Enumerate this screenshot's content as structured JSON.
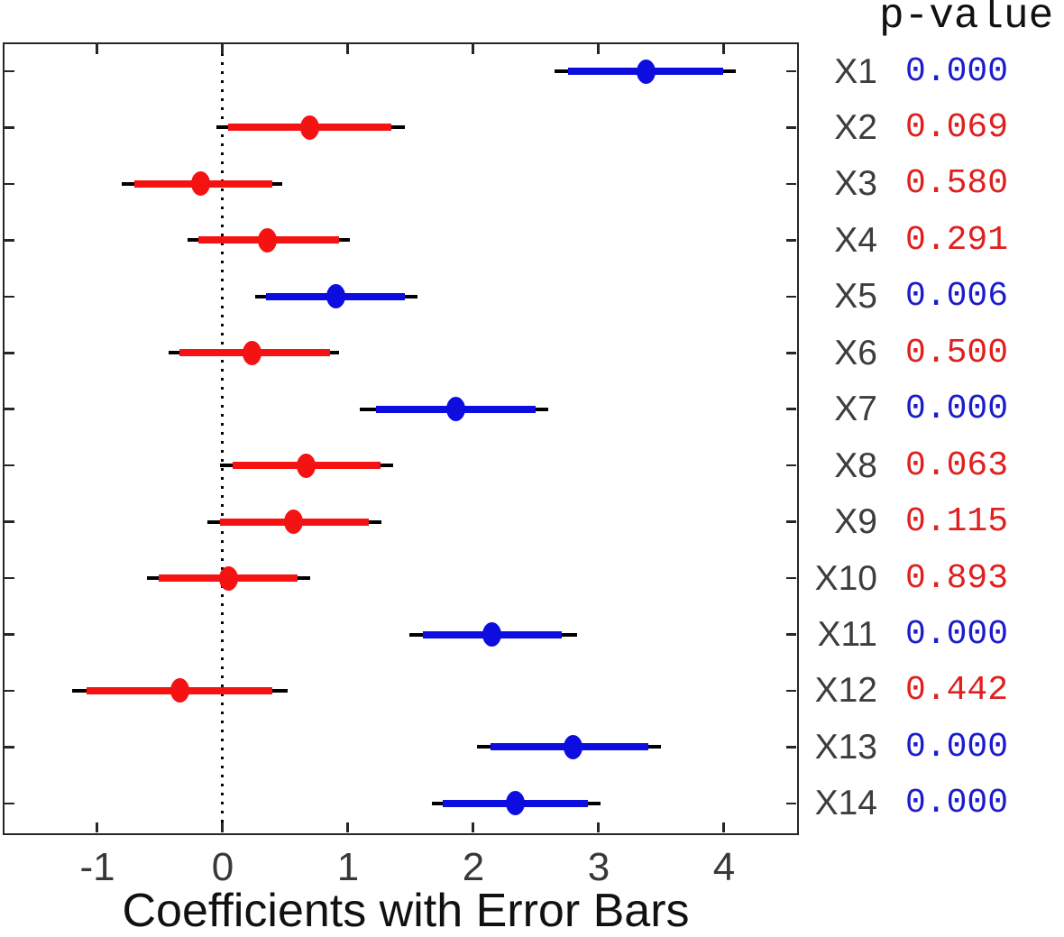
{
  "colors": {
    "significant": "#0d0de0",
    "nonsignificant": "#f51212",
    "significant_text": "#1c1ccd",
    "nonsignificant_text": "#e01f1f",
    "axis": "#262626",
    "row_label": "#3d3d3d",
    "tick_label": "#383838",
    "whisker": "#000000"
  },
  "right_panel": {
    "header": "p-value"
  },
  "chart_data": {
    "type": "scatter",
    "subtype": "horizontal-errorbar-forest-plot",
    "title": "",
    "xlabel": "Coefficients with Error Bars",
    "ylabel": "",
    "x_ticks": [
      -1,
      0,
      1,
      2,
      3,
      4
    ],
    "xlim": [
      -1.75,
      4.6
    ],
    "zero_reference_line_x": 0,
    "grid": false,
    "legend": false,
    "marker": "filled-ellipse",
    "rows": [
      {
        "label": "X1",
        "estimate": 3.38,
        "thick_ci": [
          2.76,
          4.0
        ],
        "whisker_ci": [
          2.65,
          4.1
        ],
        "p_value": "0.000",
        "significant": true
      },
      {
        "label": "X2",
        "estimate": 0.7,
        "thick_ci": [
          0.05,
          1.35
        ],
        "whisker_ci": [
          -0.05,
          1.46
        ],
        "p_value": "0.069",
        "significant": false
      },
      {
        "label": "X3",
        "estimate": -0.17,
        "thick_ci": [
          -0.7,
          0.4
        ],
        "whisker_ci": [
          -0.8,
          0.48
        ],
        "p_value": "0.580",
        "significant": false
      },
      {
        "label": "X4",
        "estimate": 0.36,
        "thick_ci": [
          -0.19,
          0.93
        ],
        "whisker_ci": [
          -0.28,
          1.02
        ],
        "p_value": "0.291",
        "significant": false
      },
      {
        "label": "X5",
        "estimate": 0.91,
        "thick_ci": [
          0.35,
          1.46
        ],
        "whisker_ci": [
          0.26,
          1.56
        ],
        "p_value": "0.006",
        "significant": true
      },
      {
        "label": "X6",
        "estimate": 0.24,
        "thick_ci": [
          -0.34,
          0.86
        ],
        "whisker_ci": [
          -0.43,
          0.93
        ],
        "p_value": "0.500",
        "significant": false
      },
      {
        "label": "X7",
        "estimate": 1.86,
        "thick_ci": [
          1.23,
          2.5
        ],
        "whisker_ci": [
          1.1,
          2.6
        ],
        "p_value": "0.000",
        "significant": true
      },
      {
        "label": "X8",
        "estimate": 0.67,
        "thick_ci": [
          0.08,
          1.26
        ],
        "whisker_ci": [
          -0.02,
          1.36
        ],
        "p_value": "0.063",
        "significant": false
      },
      {
        "label": "X9",
        "estimate": 0.57,
        "thick_ci": [
          -0.02,
          1.17
        ],
        "whisker_ci": [
          -0.12,
          1.27
        ],
        "p_value": "0.115",
        "significant": false
      },
      {
        "label": "X10",
        "estimate": 0.05,
        "thick_ci": [
          -0.51,
          0.6
        ],
        "whisker_ci": [
          -0.6,
          0.7
        ],
        "p_value": "0.893",
        "significant": false
      },
      {
        "label": "X11",
        "estimate": 2.15,
        "thick_ci": [
          1.6,
          2.71
        ],
        "whisker_ci": [
          1.49,
          2.83
        ],
        "p_value": "0.000",
        "significant": true
      },
      {
        "label": "X12",
        "estimate": -0.34,
        "thick_ci": [
          -1.08,
          0.4
        ],
        "whisker_ci": [
          -1.2,
          0.52
        ],
        "p_value": "0.442",
        "significant": false
      },
      {
        "label": "X13",
        "estimate": 2.8,
        "thick_ci": [
          2.14,
          3.4
        ],
        "whisker_ci": [
          2.03,
          3.5
        ],
        "p_value": "0.000",
        "significant": true
      },
      {
        "label": "X14",
        "estimate": 2.34,
        "thick_ci": [
          1.76,
          2.92
        ],
        "whisker_ci": [
          1.67,
          3.02
        ],
        "p_value": "0.000",
        "significant": true
      }
    ]
  }
}
